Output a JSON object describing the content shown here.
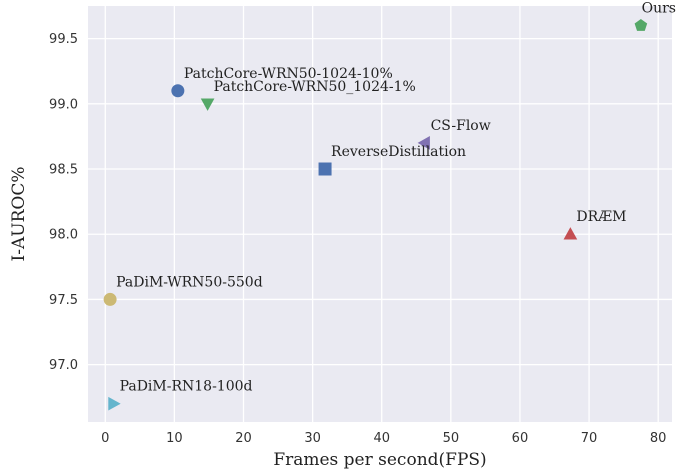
{
  "chart_data": {
    "type": "scatter",
    "title": "",
    "xlabel": "Frames per second(FPS)",
    "ylabel": "I-AUROC%",
    "xlim": [
      -2.5,
      82
    ],
    "ylim": [
      96.56,
      99.75
    ],
    "xticks": [
      "0",
      "10",
      "20",
      "30",
      "40",
      "50",
      "60",
      "70",
      "80"
    ],
    "yticks": [
      "97.0",
      "97.5",
      "98.0",
      "98.5",
      "99.0",
      "99.5"
    ],
    "grid": true,
    "background": "#eaeaf2",
    "points": [
      {
        "label": "Ours",
        "x": 77.5,
        "y": 99.6,
        "marker": "pentagon",
        "color": "#55a868"
      },
      {
        "label": "PatchCore-WRN50-1024-10%",
        "x": 10.5,
        "y": 99.1,
        "marker": "circle",
        "color": "#4c72b0"
      },
      {
        "label": "PatchCore-WRN50_1024-1%",
        "x": 14.8,
        "y": 99.0,
        "marker": "triangle-down",
        "color": "#55a868"
      },
      {
        "label": "CS-Flow",
        "x": 46.2,
        "y": 98.7,
        "marker": "triangle-left",
        "color": "#8172b2"
      },
      {
        "label": "ReverseDistillation",
        "x": 31.8,
        "y": 98.5,
        "marker": "square",
        "color": "#4c72b0"
      },
      {
        "label": "DRÆM",
        "x": 67.3,
        "y": 98.0,
        "marker": "triangle-up",
        "color": "#c44e52"
      },
      {
        "label": "PaDiM-WRN50-550d",
        "x": 0.7,
        "y": 97.5,
        "marker": "circle",
        "color": "#ccb974"
      },
      {
        "label": "PaDiM-RN18-100d",
        "x": 1.2,
        "y": 96.7,
        "marker": "triangle-right",
        "color": "#64b5cd"
      }
    ]
  }
}
